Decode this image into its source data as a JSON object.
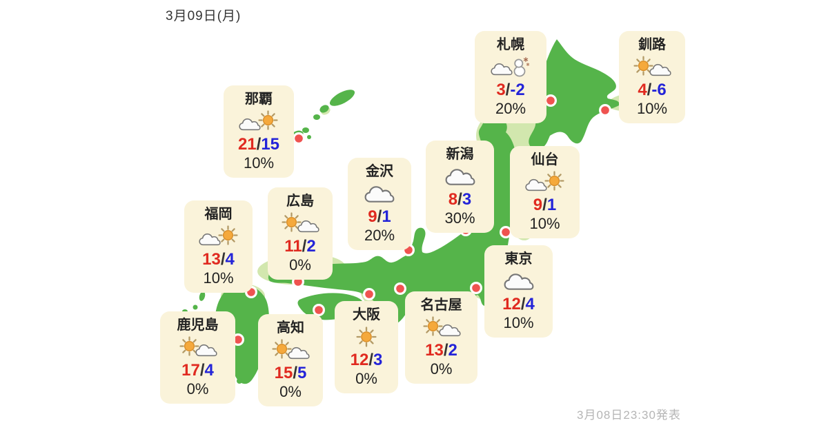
{
  "header": {
    "date_label": "3月09日(月)"
  },
  "footer": {
    "issued_label": "3月08日23:30発表"
  },
  "format": {
    "temp_separator": "/"
  },
  "colors": {
    "card_bg": "#faf3da",
    "land_green": "#55b44a",
    "land_light_green": "#d2e7ae",
    "marker_red": "#ef5350",
    "high_temp_red": "#e02a20",
    "low_temp_blue": "#2424d8"
  },
  "cities": [
    {
      "id": "sapporo",
      "name": "札幌",
      "icon": "cloudy-then-snow",
      "high": 3,
      "low": -2,
      "precip": "20%"
    },
    {
      "id": "kushiro",
      "name": "釧路",
      "icon": "sunny-then-cloudy",
      "high": 4,
      "low": -6,
      "precip": "10%"
    },
    {
      "id": "naha",
      "name": "那覇",
      "icon": "cloudy-then-sunny",
      "high": 21,
      "low": 15,
      "precip": "10%"
    },
    {
      "id": "niigata",
      "name": "新潟",
      "icon": "cloudy",
      "high": 8,
      "low": 3,
      "precip": "30%"
    },
    {
      "id": "sendai",
      "name": "仙台",
      "icon": "cloudy-then-sunny",
      "high": 9,
      "low": 1,
      "precip": "10%"
    },
    {
      "id": "kanazawa",
      "name": "金沢",
      "icon": "cloudy",
      "high": 9,
      "low": 1,
      "precip": "20%"
    },
    {
      "id": "hiroshima",
      "name": "広島",
      "icon": "sunny-then-cloudy",
      "high": 11,
      "low": 2,
      "precip": "0%"
    },
    {
      "id": "fukuoka",
      "name": "福岡",
      "icon": "cloudy-then-sunny",
      "high": 13,
      "low": 4,
      "precip": "10%"
    },
    {
      "id": "tokyo",
      "name": "東京",
      "icon": "cloudy",
      "high": 12,
      "low": 4,
      "precip": "10%"
    },
    {
      "id": "nagoya",
      "name": "名古屋",
      "icon": "sunny-then-cloudy",
      "high": 13,
      "low": 2,
      "precip": "0%"
    },
    {
      "id": "osaka",
      "name": "大阪",
      "icon": "sunny",
      "high": 12,
      "low": 3,
      "precip": "0%"
    },
    {
      "id": "kochi",
      "name": "高知",
      "icon": "sunny-then-cloudy",
      "high": 15,
      "low": 5,
      "precip": "0%"
    },
    {
      "id": "kagoshima",
      "name": "鹿児島",
      "icon": "sunny-then-cloudy",
      "high": 17,
      "low": 4,
      "precip": "0%"
    }
  ]
}
